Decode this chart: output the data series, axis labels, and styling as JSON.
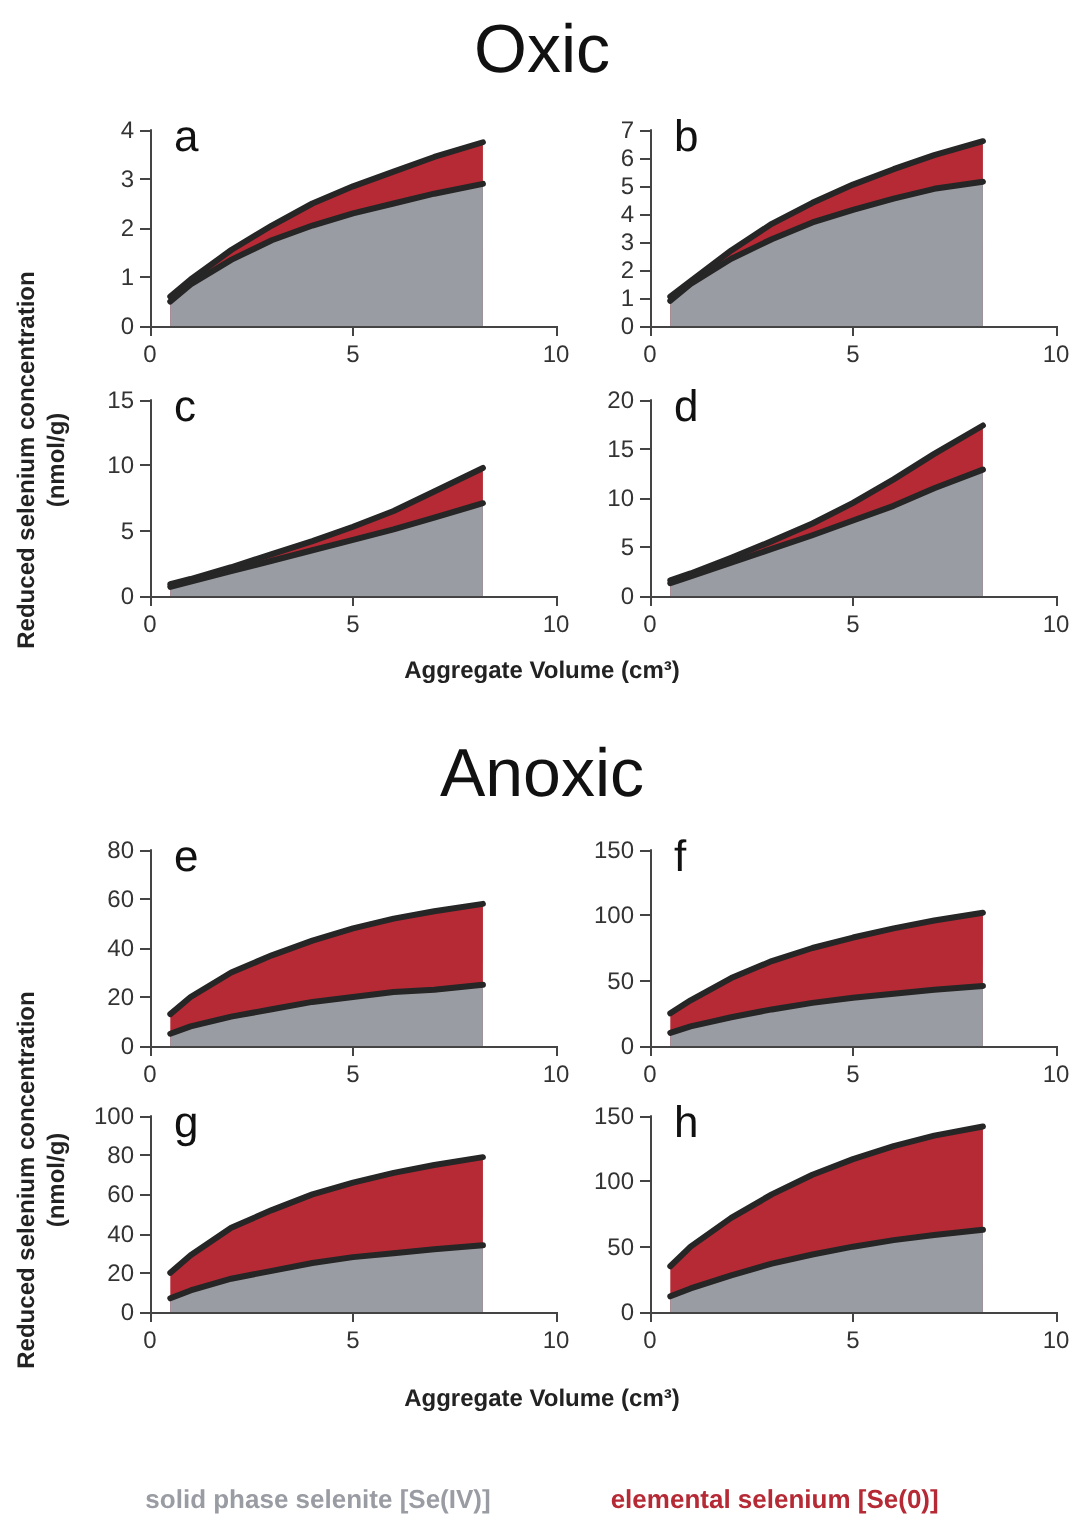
{
  "chart_data": [
    {
      "type": "area",
      "title": "Oxic",
      "ylabel": "Reduced selenium concentration (nmol/g)",
      "annotations": [
        "a"
      ],
      "stacked": true,
      "x": [
        0.5,
        1,
        2,
        3,
        4,
        5,
        6,
        7,
        8.2
      ],
      "xlim": [
        0,
        10
      ],
      "xticks": [
        0,
        5,
        10
      ],
      "ylim": [
        0,
        4
      ],
      "yticks": [
        0,
        1,
        2,
        3,
        4
      ],
      "series": [
        {
          "color": "#9a9ca3",
          "values": [
            0.5,
            0.85,
            1.35,
            1.75,
            2.05,
            2.3,
            2.5,
            2.7,
            2.9
          ]
        },
        {
          "color": "#b52a35",
          "values": [
            0.1,
            0.1,
            0.2,
            0.3,
            0.45,
            0.55,
            0.65,
            0.75,
            0.85
          ]
        }
      ]
    },
    {
      "type": "area",
      "annotations": [
        "b"
      ],
      "stacked": true,
      "x": [
        0.5,
        1,
        2,
        3,
        4,
        5,
        6,
        7,
        8.2
      ],
      "xlim": [
        0,
        10
      ],
      "xticks": [
        0,
        5,
        10
      ],
      "ylim": [
        0,
        7
      ],
      "yticks": [
        0,
        1,
        2,
        3,
        4,
        5,
        6,
        7
      ],
      "series": [
        {
          "color": "#9a9ca3",
          "values": [
            0.9,
            1.5,
            2.4,
            3.1,
            3.7,
            4.15,
            4.55,
            4.9,
            5.15
          ]
        },
        {
          "color": "#b52a35",
          "values": [
            0.15,
            0.1,
            0.3,
            0.55,
            0.7,
            0.9,
            1.05,
            1.2,
            1.45
          ]
        }
      ]
    },
    {
      "type": "area",
      "xlabel": "Aggregate Volume (cm³)",
      "annotations": [
        "c"
      ],
      "stacked": true,
      "x": [
        0.5,
        1,
        2,
        3,
        4,
        5,
        6,
        7,
        8.2
      ],
      "xlim": [
        0,
        10
      ],
      "xticks": [
        0,
        5,
        10
      ],
      "ylim": [
        0,
        15
      ],
      "yticks": [
        0,
        5,
        10,
        15
      ],
      "series": [
        {
          "color": "#9a9ca3",
          "values": [
            0.7,
            1.1,
            1.9,
            2.7,
            3.5,
            4.3,
            5.1,
            6.0,
            7.1
          ]
        },
        {
          "color": "#b52a35",
          "values": [
            0.2,
            0.2,
            0.3,
            0.5,
            0.7,
            1.0,
            1.4,
            2.0,
            2.7
          ]
        }
      ]
    },
    {
      "type": "area",
      "annotations": [
        "d"
      ],
      "stacked": true,
      "x": [
        0.5,
        1,
        2,
        3,
        4,
        5,
        6,
        7,
        8.2
      ],
      "xlim": [
        0,
        10
      ],
      "xticks": [
        0,
        5,
        10
      ],
      "ylim": [
        0,
        20
      ],
      "yticks": [
        0,
        5,
        10,
        15,
        20
      ],
      "series": [
        {
          "color": "#9a9ca3",
          "values": [
            1.3,
            2.0,
            3.4,
            4.8,
            6.2,
            7.7,
            9.2,
            11.0,
            12.9
          ]
        },
        {
          "color": "#b52a35",
          "values": [
            0.3,
            0.3,
            0.5,
            0.8,
            1.2,
            1.8,
            2.7,
            3.5,
            4.5
          ]
        }
      ]
    },
    {
      "type": "area",
      "title": "Anoxic",
      "ylabel": "Reduced selenium concentration (nmol/g)",
      "annotations": [
        "e"
      ],
      "stacked": true,
      "x": [
        0.5,
        1,
        2,
        3,
        4,
        5,
        6,
        7,
        8.2
      ],
      "xlim": [
        0,
        10
      ],
      "xticks": [
        0,
        5,
        10
      ],
      "ylim": [
        0,
        80
      ],
      "yticks": [
        0,
        20,
        40,
        60,
        80
      ],
      "series": [
        {
          "color": "#9a9ca3",
          "values": [
            5,
            8,
            12,
            15,
            18,
            20,
            22,
            23,
            25
          ]
        },
        {
          "color": "#b52a35",
          "values": [
            8,
            12,
            18,
            22,
            25,
            28,
            30,
            32,
            33
          ]
        }
      ]
    },
    {
      "type": "area",
      "annotations": [
        "f"
      ],
      "stacked": true,
      "x": [
        0.5,
        1,
        2,
        3,
        4,
        5,
        6,
        7,
        8.2
      ],
      "xlim": [
        0,
        10
      ],
      "xticks": [
        0,
        5,
        10
      ],
      "ylim": [
        0,
        150
      ],
      "yticks": [
        0,
        50,
        100,
        150
      ],
      "series": [
        {
          "color": "#9a9ca3",
          "values": [
            10,
            15,
            22,
            28,
            33,
            37,
            40,
            43,
            46
          ]
        },
        {
          "color": "#b52a35",
          "values": [
            15,
            20,
            30,
            37,
            42,
            46,
            50,
            53,
            56
          ]
        }
      ]
    },
    {
      "type": "area",
      "xlabel": "Aggregate Volume (cm³)",
      "annotations": [
        "g"
      ],
      "stacked": true,
      "x": [
        0.5,
        1,
        2,
        3,
        4,
        5,
        6,
        7,
        8.2
      ],
      "xlim": [
        0,
        10
      ],
      "xticks": [
        0,
        5,
        10
      ],
      "ylim": [
        0,
        100
      ],
      "yticks": [
        0,
        20,
        40,
        60,
        80,
        100
      ],
      "series": [
        {
          "color": "#9a9ca3",
          "values": [
            7,
            11,
            17,
            21,
            25,
            28,
            30,
            32,
            34
          ]
        },
        {
          "color": "#b52a35",
          "values": [
            13,
            18,
            26,
            31,
            35,
            38,
            41,
            43,
            45
          ]
        }
      ]
    },
    {
      "type": "area",
      "annotations": [
        "h"
      ],
      "stacked": true,
      "legend": "bottom",
      "x": [
        0.5,
        1,
        2,
        3,
        4,
        5,
        6,
        7,
        8.2
      ],
      "xlim": [
        0,
        10
      ],
      "xticks": [
        0,
        5,
        10
      ],
      "ylim": [
        0,
        150
      ],
      "yticks": [
        0,
        50,
        100,
        150
      ],
      "series": [
        {
          "name": "solid phase selenite [Se(IV)]",
          "color": "#9a9ca3",
          "values": [
            12,
            18,
            28,
            37,
            44,
            50,
            55,
            59,
            63
          ]
        },
        {
          "name": "elemental selenium [Se(0)]",
          "color": "#b52a35",
          "values": [
            23,
            32,
            44,
            53,
            61,
            67,
            72,
            76,
            79
          ]
        }
      ]
    }
  ]
}
